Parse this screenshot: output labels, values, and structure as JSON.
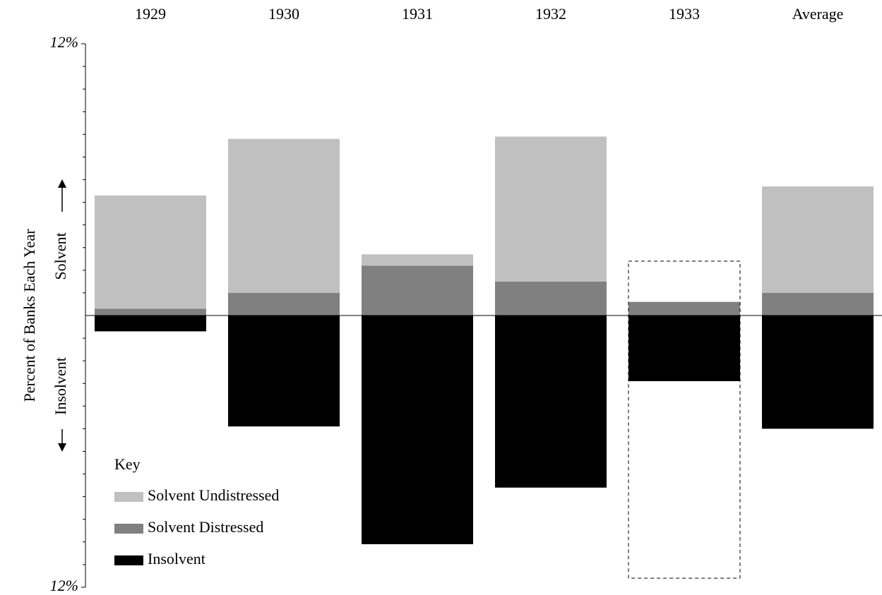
{
  "chart_data": {
    "type": "bar",
    "y_label": "Percent of Banks Each Year",
    "up_label": "Solvent",
    "down_label": "Insolvent",
    "legend_title": "Key",
    "categories": [
      "1929",
      "1930",
      "1931",
      "1932",
      "1933",
      "Average"
    ],
    "series": [
      {
        "name": "Solvent Undistressed",
        "color": "#c0c0c0",
        "values": [
          5.0,
          6.8,
          0.5,
          6.4,
          null,
          4.7
        ]
      },
      {
        "name": "Solvent Distressed",
        "color": "#808080",
        "values": [
          0.3,
          1.0,
          2.2,
          1.5,
          0.6,
          1.0
        ]
      },
      {
        "name": "Insolvent",
        "color": "#000000",
        "values": [
          -0.7,
          -4.9,
          -10.1,
          -7.6,
          -2.9,
          -5.0
        ]
      }
    ],
    "outlines": [
      null,
      null,
      null,
      null,
      {
        "top": 2.4,
        "bottom": -11.6
      },
      null
    ],
    "ylim": [
      -12,
      12
    ],
    "yticks": [
      {
        "value": 12,
        "label": "12%"
      },
      {
        "value": -12,
        "label": "12%"
      }
    ],
    "minor_yticks": [
      -11,
      -10,
      -9,
      -8,
      -7,
      -6,
      -5,
      -4,
      -3,
      -2,
      -1,
      1,
      2,
      3,
      4,
      5,
      6,
      7,
      8,
      9,
      10,
      11
    ]
  }
}
